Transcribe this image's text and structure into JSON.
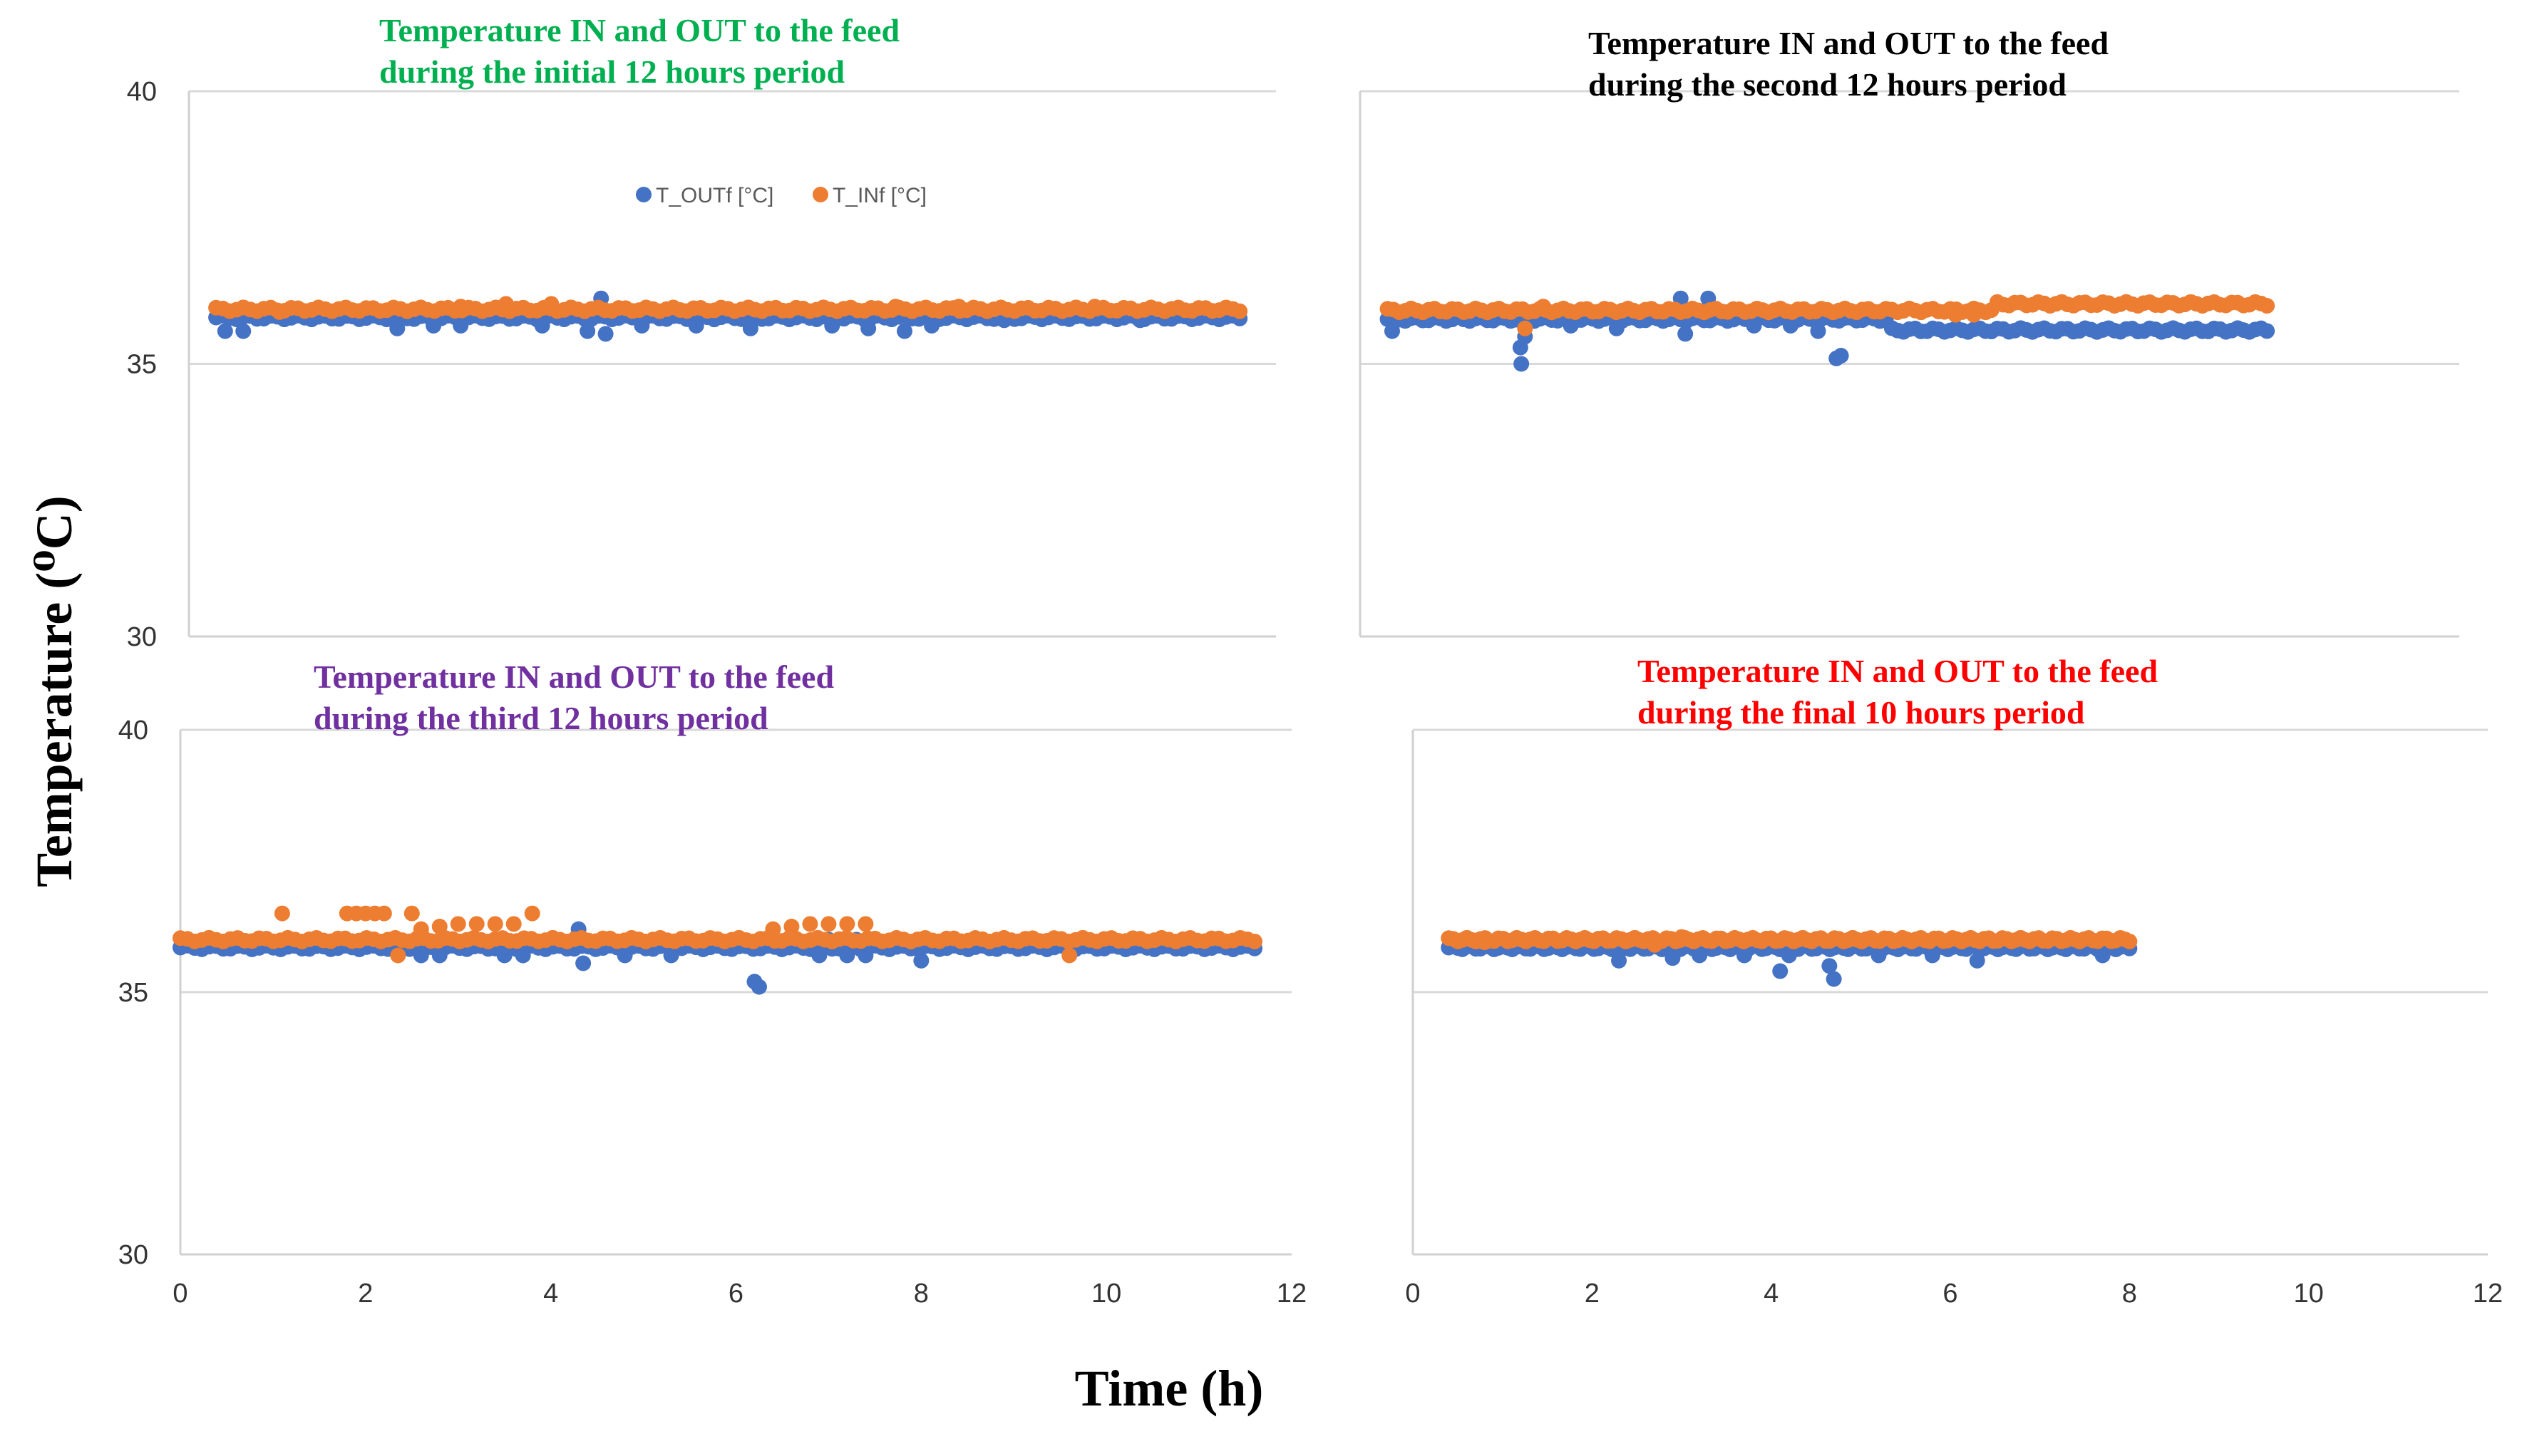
{
  "figure": {
    "ylabel": "Temperature  (⁰C)",
    "xlabel": "Time (h)"
  },
  "colors": {
    "T_OUTf": "#4472C4",
    "T_INf": "#ED7D31"
  },
  "legend": {
    "placement": "top-center of first panel",
    "entries": [
      "T_OUTf [°C]",
      "T_INf [°C]"
    ]
  },
  "chart_data": [
    {
      "type": "scatter",
      "title": [
        "Temperature IN and OUT to the feed",
        "during the initial 12 hours period"
      ],
      "title_color": "#00B050",
      "xlim": [
        0,
        12
      ],
      "ylim": [
        30,
        40
      ],
      "yticks": [
        30,
        35,
        40
      ],
      "xticks": [],
      "grid": true,
      "series": [
        {
          "name": "T_OUTf [°C]",
          "t_start": 0.3,
          "t_end": 11.6,
          "base": 35.85,
          "dips": [
            [
              0.4,
              35.6
            ],
            [
              0.6,
              35.6
            ],
            [
              2.3,
              35.65
            ],
            [
              2.7,
              35.7
            ],
            [
              3.0,
              35.7
            ],
            [
              3.9,
              35.7
            ],
            [
              4.4,
              35.6
            ],
            [
              4.55,
              36.2
            ],
            [
              4.6,
              35.55
            ],
            [
              5.0,
              35.7
            ],
            [
              5.6,
              35.7
            ],
            [
              6.2,
              35.65
            ],
            [
              7.1,
              35.7
            ],
            [
              7.5,
              35.65
            ],
            [
              7.9,
              35.6
            ],
            [
              8.2,
              35.7
            ],
            [
              9.0,
              35.8
            ],
            [
              10.5,
              35.8
            ]
          ]
        },
        {
          "name": "T_INf [°C]",
          "t_start": 0.3,
          "t_end": 11.6,
          "base": 36.0,
          "dips": [
            [
              1.0,
              35.95
            ],
            [
              3.0,
              36.05
            ],
            [
              3.5,
              36.1
            ],
            [
              4.0,
              36.1
            ],
            [
              7.8,
              36.05
            ],
            [
              8.5,
              36.05
            ],
            [
              10.0,
              36.05
            ]
          ]
        }
      ]
    },
    {
      "type": "scatter",
      "title": [
        "Temperature IN and OUT to the feed",
        "during the second 12 hours period"
      ],
      "title_color": "#000000",
      "xlim": [
        0,
        12
      ],
      "ylim": [
        30,
        40
      ],
      "yticks": [],
      "xticks": [],
      "grid": true,
      "series": [
        {
          "name": "T_OUTf [°C]",
          "t_start": 0.3,
          "t_end": 9.9,
          "base": 35.82,
          "base_after": 35.62,
          "step_at": 5.8,
          "dips": [
            [
              0.35,
              35.6
            ],
            [
              1.75,
              35.3
            ],
            [
              1.76,
              35.0
            ],
            [
              1.8,
              35.5
            ],
            [
              2.3,
              35.7
            ],
            [
              2.8,
              35.65
            ],
            [
              3.5,
              36.2
            ],
            [
              3.55,
              35.55
            ],
            [
              3.8,
              36.2
            ],
            [
              4.3,
              35.7
            ],
            [
              4.7,
              35.7
            ],
            [
              5.0,
              35.6
            ],
            [
              5.2,
              35.1
            ],
            [
              5.25,
              35.15
            ]
          ]
        },
        {
          "name": "T_INf [°C]",
          "t_start": 0.3,
          "t_end": 9.9,
          "base": 35.98,
          "base_after": 36.1,
          "step_at": 6.9,
          "dips": [
            [
              1.8,
              35.65
            ],
            [
              2.0,
              36.05
            ],
            [
              6.5,
              35.9
            ],
            [
              6.7,
              35.9
            ]
          ]
        }
      ]
    },
    {
      "type": "scatter",
      "title": [
        "Temperature IN  and  OUT  to  the  feed",
        "during the third 12 hours period"
      ],
      "title_color": "#7030A0",
      "xlim": [
        0,
        12
      ],
      "ylim": [
        30,
        40
      ],
      "yticks": [
        30,
        35,
        40
      ],
      "xticks": [
        0,
        2,
        4,
        6,
        8,
        10,
        12
      ],
      "grid": true,
      "series": [
        {
          "name": "T_OUTf [°C]",
          "t_start": 0.0,
          "t_end": 11.6,
          "base": 35.85,
          "dips": [
            [
              2.6,
              35.7
            ],
            [
              2.8,
              35.7
            ],
            [
              3.5,
              35.7
            ],
            [
              3.7,
              35.7
            ],
            [
              4.3,
              36.2
            ],
            [
              4.35,
              35.55
            ],
            [
              4.8,
              35.7
            ],
            [
              5.3,
              35.7
            ],
            [
              6.2,
              35.2
            ],
            [
              6.25,
              35.1
            ],
            [
              6.9,
              35.7
            ],
            [
              7.0,
              36.0
            ],
            [
              7.2,
              35.7
            ],
            [
              7.3,
              36.0
            ],
            [
              7.4,
              35.7
            ],
            [
              8.0,
              35.6
            ]
          ]
        },
        {
          "name": "T_INf [°C]",
          "t_start": 0.0,
          "t_end": 11.6,
          "base": 36.0,
          "dips": [
            [
              1.1,
              36.5
            ],
            [
              1.8,
              36.5
            ],
            [
              1.9,
              36.5
            ],
            [
              2.0,
              36.5
            ],
            [
              2.1,
              36.5
            ],
            [
              2.2,
              36.5
            ],
            [
              2.35,
              35.7
            ],
            [
              2.5,
              36.5
            ],
            [
              2.6,
              36.2
            ],
            [
              2.8,
              36.25
            ],
            [
              3.0,
              36.3
            ],
            [
              3.2,
              36.3
            ],
            [
              3.4,
              36.3
            ],
            [
              3.6,
              36.3
            ],
            [
              3.8,
              36.5
            ],
            [
              6.4,
              36.2
            ],
            [
              6.6,
              36.25
            ],
            [
              6.8,
              36.3
            ],
            [
              7.0,
              36.3
            ],
            [
              7.2,
              36.3
            ],
            [
              7.4,
              36.3
            ],
            [
              9.6,
              35.7
            ]
          ]
        }
      ]
    },
    {
      "type": "scatter",
      "title": [
        "Temperature  IN and OUT to the feed",
        "during the final 10 hours period"
      ],
      "title_color": "#FF0000",
      "xlim": [
        0,
        12
      ],
      "ylim": [
        30,
        40
      ],
      "yticks": [],
      "xticks": [
        0,
        2,
        4,
        6,
        8,
        10,
        12
      ],
      "grid": true,
      "series": [
        {
          "name": "T_OUTf [°C]",
          "t_start": 0.4,
          "t_end": 8.0,
          "base": 35.85,
          "dips": [
            [
              2.3,
              35.6
            ],
            [
              2.9,
              35.65
            ],
            [
              3.2,
              35.7
            ],
            [
              3.7,
              35.7
            ],
            [
              4.1,
              35.4
            ],
            [
              4.2,
              35.7
            ],
            [
              4.65,
              35.5
            ],
            [
              4.7,
              35.25
            ],
            [
              5.2,
              35.7
            ],
            [
              5.8,
              35.7
            ],
            [
              6.3,
              35.6
            ],
            [
              7.7,
              35.7
            ]
          ]
        },
        {
          "name": "T_INf [°C]",
          "t_start": 0.4,
          "t_end": 8.0,
          "base": 36.0,
          "dips": [
            [
              0.8,
              35.95
            ],
            [
              2.7,
              35.9
            ],
            [
              3.0,
              36.05
            ]
          ]
        }
      ]
    }
  ]
}
